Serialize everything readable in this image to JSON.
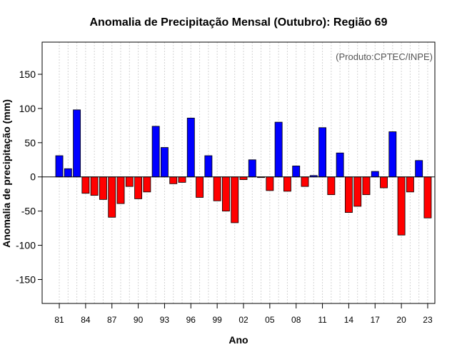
{
  "chart_data": {
    "type": "bar",
    "title": "Anomalia de Precipitação Mensal (Outubro): Região 69",
    "xlabel": "Ano",
    "ylabel": "Anomalia de precipitação (mm)",
    "annotation": "(Produto:CPTEC/INPE)",
    "ylim": [
      -185,
      197
    ],
    "yticks": [
      -150,
      -100,
      -50,
      0,
      50,
      100,
      150
    ],
    "years": [
      1981,
      1982,
      1983,
      1984,
      1985,
      1986,
      1987,
      1988,
      1989,
      1990,
      1991,
      1992,
      1993,
      1994,
      1995,
      1996,
      1997,
      1998,
      1999,
      2000,
      2001,
      2002,
      2003,
      2004,
      2005,
      2006,
      2007,
      2008,
      2009,
      2010,
      2011,
      2012,
      2013,
      2014,
      2015,
      2016,
      2017,
      2018,
      2019,
      2020,
      2021,
      2022,
      2023
    ],
    "values": [
      31,
      12,
      98,
      -24,
      -27,
      -33,
      -59,
      -39,
      -14,
      -32,
      -22,
      74,
      43,
      -10,
      -8,
      86,
      -30,
      31,
      -35,
      -50,
      -67,
      -4,
      25,
      -1,
      -20,
      80,
      -21,
      16,
      -14,
      2,
      72,
      -26,
      35,
      -52,
      -43,
      -26,
      8,
      -16,
      66,
      -85,
      -22,
      24,
      -60
    ],
    "xtick_labels": [
      "81",
      "84",
      "87",
      "90",
      "93",
      "96",
      "99",
      "02",
      "05",
      "08",
      "11",
      "14",
      "17",
      "20",
      "23"
    ],
    "xtick_years": [
      1981,
      1984,
      1987,
      1990,
      1993,
      1996,
      1999,
      2002,
      2005,
      2008,
      2011,
      2014,
      2017,
      2020,
      2023
    ],
    "colors": {
      "positive": "#0000ff",
      "negative": "#ff0000",
      "grid": "#d3d3d3",
      "axis": "#000000"
    }
  }
}
